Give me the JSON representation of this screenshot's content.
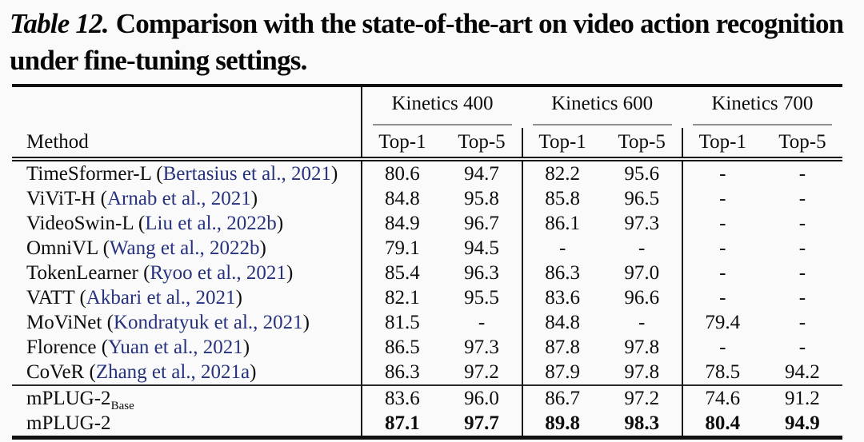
{
  "caption": {
    "label": "Table 12.",
    "text": "Comparison with the state-of-the-art on video action recognition under fine-tuning settings."
  },
  "table": {
    "method_header": "Method",
    "groups": [
      {
        "label": "Kinetics 400"
      },
      {
        "label": "Kinetics 600"
      },
      {
        "label": "Kinetics 700"
      }
    ],
    "subheaders": [
      "Top-1",
      "Top-5"
    ],
    "rows": [
      {
        "method": "TimeSformer-L",
        "citation": "Bertasius et al., 2021",
        "values": [
          "80.6",
          "94.7",
          "82.2",
          "95.6",
          "-",
          "-"
        ]
      },
      {
        "method": "ViViT-H",
        "citation": "Arnab et al., 2021",
        "values": [
          "84.8",
          "95.8",
          "85.8",
          "96.5",
          "-",
          "-"
        ]
      },
      {
        "method": "VideoSwin-L",
        "citation": "Liu et al., 2022b",
        "values": [
          "84.9",
          "96.7",
          "86.1",
          "97.3",
          "-",
          "-"
        ]
      },
      {
        "method": "OmniVL",
        "citation": "Wang et al., 2022b",
        "values": [
          "79.1",
          "94.5",
          "-",
          "-",
          "-",
          "-"
        ]
      },
      {
        "method": "TokenLearner",
        "citation": "Ryoo et al., 2021",
        "values": [
          "85.4",
          "96.3",
          "86.3",
          "97.0",
          "-",
          "-"
        ]
      },
      {
        "method": "VATT",
        "citation": "Akbari et al., 2021",
        "values": [
          "82.1",
          "95.5",
          "83.6",
          "96.6",
          "-",
          "-"
        ]
      },
      {
        "method": "MoViNet",
        "citation": "Kondratyuk et al., 2021",
        "values": [
          "81.5",
          "-",
          "84.8",
          "-",
          "79.4",
          "-"
        ]
      },
      {
        "method": "Florence",
        "citation": "Yuan et al., 2021",
        "values": [
          "86.5",
          "97.3",
          "87.8",
          "97.8",
          "-",
          "-"
        ]
      },
      {
        "method": "CoVeR",
        "citation": "Zhang et al., 2021a",
        "values": [
          "86.3",
          "97.2",
          "87.9",
          "97.8",
          "78.5",
          "94.2"
        ]
      },
      {
        "method": "mPLUG-2",
        "subscript": "Base",
        "section_start": true,
        "values": [
          "83.6",
          "96.0",
          "86.7",
          "97.2",
          "74.6",
          "91.2"
        ]
      },
      {
        "method": "mPLUG-2",
        "bold": true,
        "values": [
          "87.1",
          "97.7",
          "89.8",
          "98.3",
          "80.4",
          "94.9"
        ]
      }
    ]
  },
  "colors": {
    "citation_link": "#26327e",
    "rule_dark": "#101010",
    "group_underline": "#8f8f8f"
  }
}
